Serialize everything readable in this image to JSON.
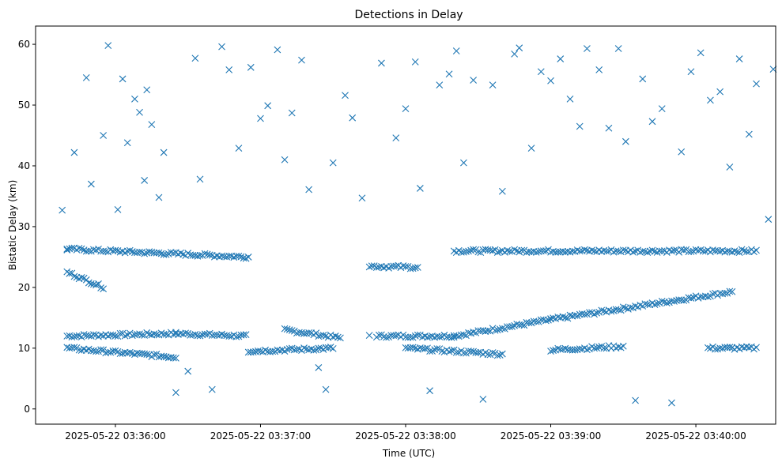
{
  "chart_data": {
    "type": "scatter",
    "title": "Detections in Delay",
    "xlabel": "Time (UTC)",
    "ylabel": "Bistatic Delay (km)",
    "x_unit": "timestamp",
    "xlim": [
      "2025-05-22 03:35:27",
      "2025-05-22 03:40:33"
    ],
    "ylim": [
      -2.5,
      63
    ],
    "xticks": [
      "2025-05-22 03:36:00",
      "2025-05-22 03:37:00",
      "2025-05-22 03:38:00",
      "2025-05-22 03:39:00",
      "2025-05-22 03:40:00"
    ],
    "yticks": [
      0,
      10,
      20,
      30,
      40,
      50,
      60
    ],
    "marker": "x",
    "color": "#1f77b4",
    "grid": false,
    "legend": "none",
    "tracks": [
      {
        "label": "",
        "from": "2025-05-22 03:35:40",
        "to": "2025-05-22 03:36:25",
        "y_start": 12.0,
        "y_end": 12.4
      },
      {
        "label": "",
        "from": "2025-05-22 03:36:25",
        "to": "2025-05-22 03:36:54",
        "y_start": 12.4,
        "y_end": 12.0
      },
      {
        "label": "",
        "from": "2025-05-22 03:37:10",
        "to": "2025-05-22 03:37:33",
        "y_start": 13.0,
        "y_end": 11.7
      },
      {
        "label": "",
        "from": "2025-05-22 03:37:48",
        "to": "2025-05-22 03:38:20",
        "y_start": 12.0,
        "y_end": 12.0
      },
      {
        "label": "",
        "from": "2025-05-22 03:38:20",
        "to": "2025-05-22 03:39:00",
        "y_start": 12.0,
        "y_end": 14.7
      },
      {
        "label": "",
        "from": "2025-05-22 03:39:00",
        "to": "2025-05-22 03:40:15",
        "y_start": 14.7,
        "y_end": 19.3
      },
      {
        "label": "",
        "from": "2025-05-22 03:35:40",
        "to": "2025-05-22 03:36:55",
        "y_start": 26.3,
        "y_end": 25.0
      },
      {
        "label": "",
        "from": "2025-05-22 03:38:20",
        "to": "2025-05-22 03:40:25",
        "y_start": 26.0,
        "y_end": 26.0
      },
      {
        "label": "",
        "from": "2025-05-22 03:35:40",
        "to": "2025-05-22 03:35:55",
        "y_start": 22.5,
        "y_end": 20.0
      },
      {
        "label": "",
        "from": "2025-05-22 03:37:45",
        "to": "2025-05-22 03:38:05",
        "y_start": 23.5,
        "y_end": 23.3
      },
      {
        "label": "",
        "from": "2025-05-22 03:35:40",
        "to": "2025-05-22 03:36:25",
        "y_start": 10.0,
        "y_end": 8.5
      },
      {
        "label": "",
        "from": "2025-05-22 03:36:55",
        "to": "2025-05-22 03:37:30",
        "y_start": 9.5,
        "y_end": 10.0
      },
      {
        "label": "",
        "from": "2025-05-22 03:38:00",
        "to": "2025-05-22 03:38:40",
        "y_start": 10.0,
        "y_end": 9.0
      },
      {
        "label": "",
        "from": "2025-05-22 03:39:00",
        "to": "2025-05-22 03:39:30",
        "y_start": 9.7,
        "y_end": 10.3
      },
      {
        "label": "",
        "from": "2025-05-22 03:40:05",
        "to": "2025-05-22 03:40:25",
        "y_start": 10.0,
        "y_end": 10.0
      }
    ],
    "points": [
      [
        "2025-05-22 03:35:38",
        32.7
      ],
      [
        "2025-05-22 03:35:40",
        26.3
      ],
      [
        "2025-05-22 03:35:43",
        42.2
      ],
      [
        "2025-05-22 03:35:48",
        54.5
      ],
      [
        "2025-05-22 03:35:50",
        37.0
      ],
      [
        "2025-05-22 03:35:55",
        45.0
      ],
      [
        "2025-05-22 03:35:57",
        59.8
      ],
      [
        "2025-05-22 03:36:01",
        32.8
      ],
      [
        "2025-05-22 03:36:03",
        54.3
      ],
      [
        "2025-05-22 03:36:05",
        43.8
      ],
      [
        "2025-05-22 03:36:08",
        51.0
      ],
      [
        "2025-05-22 03:36:10",
        48.8
      ],
      [
        "2025-05-22 03:36:12",
        37.6
      ],
      [
        "2025-05-22 03:36:13",
        52.5
      ],
      [
        "2025-05-22 03:36:15",
        46.8
      ],
      [
        "2025-05-22 03:36:18",
        34.8
      ],
      [
        "2025-05-22 03:36:20",
        42.2
      ],
      [
        "2025-05-22 03:36:25",
        2.7
      ],
      [
        "2025-05-22 03:36:30",
        6.2
      ],
      [
        "2025-05-22 03:36:33",
        57.7
      ],
      [
        "2025-05-22 03:36:35",
        37.8
      ],
      [
        "2025-05-22 03:36:40",
        3.2
      ],
      [
        "2025-05-22 03:36:44",
        59.6
      ],
      [
        "2025-05-22 03:36:47",
        55.8
      ],
      [
        "2025-05-22 03:36:51",
        42.9
      ],
      [
        "2025-05-22 03:36:56",
        56.2
      ],
      [
        "2025-05-22 03:37:00",
        47.8
      ],
      [
        "2025-05-22 03:37:03",
        49.9
      ],
      [
        "2025-05-22 03:37:07",
        59.1
      ],
      [
        "2025-05-22 03:37:10",
        41.0
      ],
      [
        "2025-05-22 03:37:13",
        48.7
      ],
      [
        "2025-05-22 03:37:17",
        57.4
      ],
      [
        "2025-05-22 03:37:20",
        36.1
      ],
      [
        "2025-05-22 03:37:24",
        6.8
      ],
      [
        "2025-05-22 03:37:27",
        3.2
      ],
      [
        "2025-05-22 03:37:30",
        40.5
      ],
      [
        "2025-05-22 03:37:35",
        51.6
      ],
      [
        "2025-05-22 03:37:38",
        47.9
      ],
      [
        "2025-05-22 03:37:42",
        34.7
      ],
      [
        "2025-05-22 03:37:45",
        12.1
      ],
      [
        "2025-05-22 03:37:50",
        56.9
      ],
      [
        "2025-05-22 03:37:56",
        44.6
      ],
      [
        "2025-05-22 03:38:00",
        49.4
      ],
      [
        "2025-05-22 03:38:04",
        57.1
      ],
      [
        "2025-05-22 03:38:06",
        36.3
      ],
      [
        "2025-05-22 03:38:10",
        3.0
      ],
      [
        "2025-05-22 03:38:14",
        53.3
      ],
      [
        "2025-05-22 03:38:18",
        55.1
      ],
      [
        "2025-05-22 03:38:21",
        58.9
      ],
      [
        "2025-05-22 03:38:24",
        40.5
      ],
      [
        "2025-05-22 03:38:28",
        54.1
      ],
      [
        "2025-05-22 03:38:32",
        1.6
      ],
      [
        "2025-05-22 03:38:36",
        53.3
      ],
      [
        "2025-05-22 03:38:40",
        35.8
      ],
      [
        "2025-05-22 03:38:45",
        58.4
      ],
      [
        "2025-05-22 03:38:47",
        59.4
      ],
      [
        "2025-05-22 03:38:52",
        42.9
      ],
      [
        "2025-05-22 03:38:56",
        55.5
      ],
      [
        "2025-05-22 03:39:00",
        54.0
      ],
      [
        "2025-05-22 03:39:04",
        57.6
      ],
      [
        "2025-05-22 03:39:08",
        51.0
      ],
      [
        "2025-05-22 03:39:12",
        46.5
      ],
      [
        "2025-05-22 03:39:15",
        59.3
      ],
      [
        "2025-05-22 03:39:20",
        55.8
      ],
      [
        "2025-05-22 03:39:24",
        46.2
      ],
      [
        "2025-05-22 03:39:28",
        59.3
      ],
      [
        "2025-05-22 03:39:31",
        44.0
      ],
      [
        "2025-05-22 03:39:35",
        1.4
      ],
      [
        "2025-05-22 03:39:38",
        54.3
      ],
      [
        "2025-05-22 03:39:42",
        47.3
      ],
      [
        "2025-05-22 03:39:46",
        49.4
      ],
      [
        "2025-05-22 03:39:50",
        1.0
      ],
      [
        "2025-05-22 03:39:54",
        42.3
      ],
      [
        "2025-05-22 03:39:58",
        55.5
      ],
      [
        "2025-05-22 03:40:02",
        58.6
      ],
      [
        "2025-05-22 03:40:06",
        50.8
      ],
      [
        "2025-05-22 03:40:10",
        52.2
      ],
      [
        "2025-05-22 03:40:14",
        39.8
      ],
      [
        "2025-05-22 03:40:18",
        57.6
      ],
      [
        "2025-05-22 03:40:22",
        45.2
      ],
      [
        "2025-05-22 03:40:25",
        53.5
      ],
      [
        "2025-05-22 03:40:30",
        31.2
      ],
      [
        "2025-05-22 03:40:32",
        55.9
      ]
    ]
  }
}
